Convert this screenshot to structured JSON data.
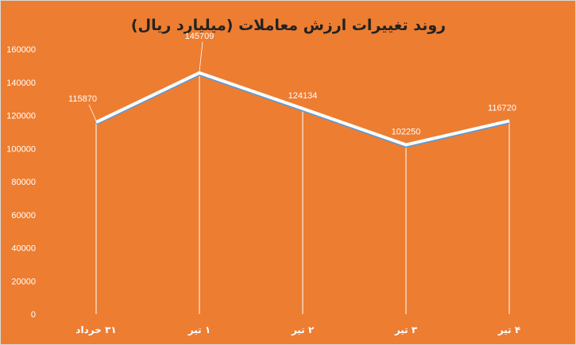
{
  "chart_data": {
    "type": "line",
    "title": "روند تغییرات ارزش معاملات (میلیارد ریال)",
    "categories": [
      "۳۱ خرداد",
      "۱ تیر",
      "۲ تیر",
      "۳ تیر",
      "۴ تیر"
    ],
    "series": [
      {
        "values": [
          115870,
          145709,
          124134,
          102250,
          116720
        ]
      }
    ],
    "data_labels": [
      "115870",
      "145709",
      "124134",
      "102250",
      "116720"
    ],
    "yticks": [
      0,
      20000,
      40000,
      60000,
      80000,
      100000,
      120000,
      140000,
      160000
    ],
    "ytick_labels": [
      "0",
      "20000",
      "40000",
      "60000",
      "80000",
      "100000",
      "120000",
      "140000",
      "160000"
    ],
    "ylim": [
      0,
      160000
    ],
    "xlabel": "",
    "ylabel": "",
    "grid": false,
    "drop_lines": true,
    "colors": {
      "background": "#ED7D31",
      "line": "#FFFFFF",
      "line_shadow": "#5B9BD5",
      "text": "#FFFFFF",
      "title": "#222222"
    }
  }
}
